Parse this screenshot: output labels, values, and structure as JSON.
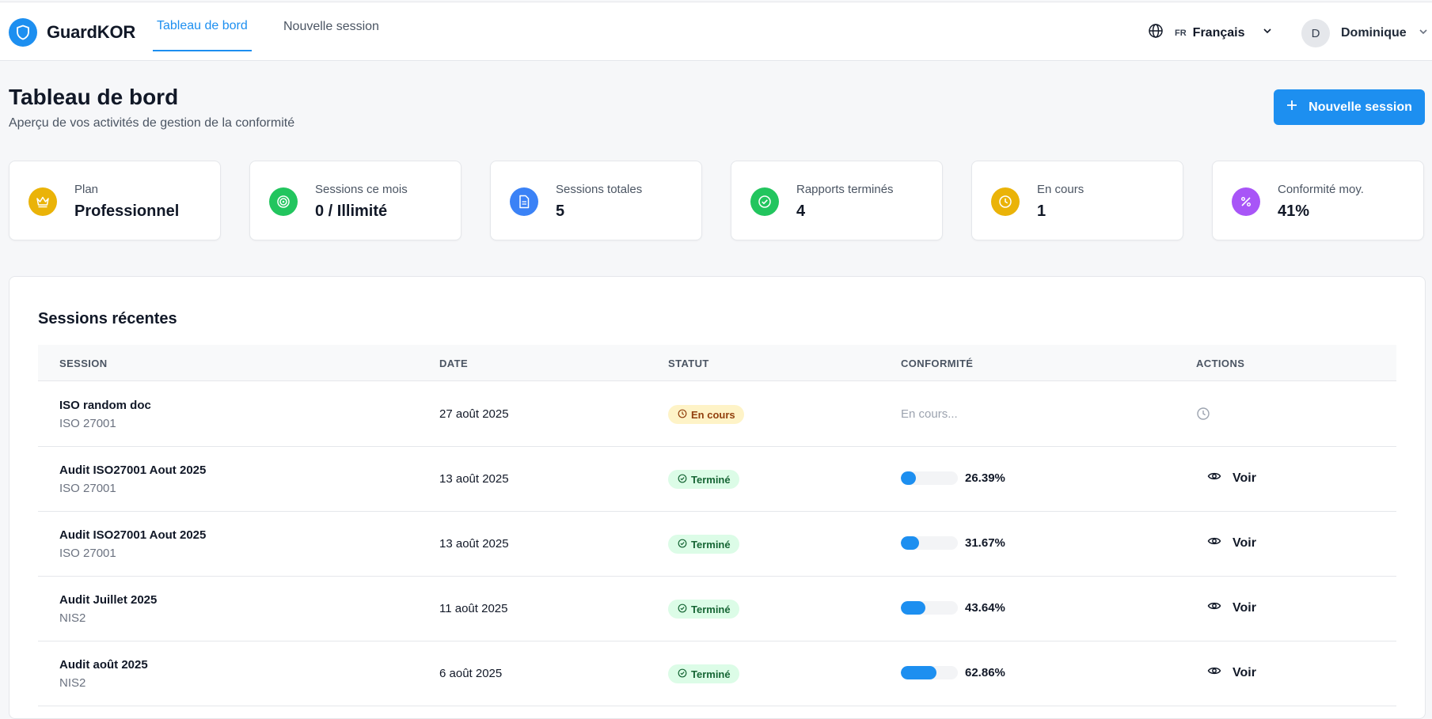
{
  "app": {
    "name": "GuardKOR"
  },
  "nav": {
    "tabs": [
      {
        "label": "Tableau de bord",
        "active": true
      },
      {
        "label": "Nouvelle session",
        "active": false
      }
    ]
  },
  "language": {
    "code": "FR",
    "name": "Français"
  },
  "user": {
    "initial": "D",
    "name": "Dominique"
  },
  "page": {
    "title": "Tableau de bord",
    "subtitle": "Aperçu de vos activités de gestion de la conformité",
    "new_session_label": "Nouvelle session"
  },
  "stats": [
    {
      "label": "Plan",
      "value": "Professionnel",
      "icon": "crown-icon",
      "color": "#eab308"
    },
    {
      "label": "Sessions ce mois",
      "value": "0 / Illimité",
      "icon": "target-icon",
      "color": "#22c55e"
    },
    {
      "label": "Sessions totales",
      "value": "5",
      "icon": "document-icon",
      "color": "#3b82f6"
    },
    {
      "label": "Rapports terminés",
      "value": "4",
      "icon": "check-circle-icon",
      "color": "#22c55e"
    },
    {
      "label": "En cours",
      "value": "1",
      "icon": "clock-icon",
      "color": "#eab308"
    },
    {
      "label": "Conformité moy.",
      "value": "41%",
      "icon": "percent-icon",
      "color": "#a855f7"
    }
  ],
  "recent": {
    "title": "Sessions récentes",
    "columns": [
      "SESSION",
      "DATE",
      "STATUT",
      "CONFORMITÉ",
      "ACTIONS"
    ],
    "rows": [
      {
        "name": "ISO random doc",
        "standard": "ISO 27001",
        "date": "27 août 2025",
        "status": "En cours",
        "state": "running",
        "compliance_text": "En cours...",
        "compliance": null
      },
      {
        "name": "Audit ISO27001 Aout 2025",
        "standard": "ISO 27001",
        "date": "13 août 2025",
        "status": "Terminé",
        "state": "done",
        "compliance": 26.39,
        "compliance_text": "26.39%",
        "action": "Voir"
      },
      {
        "name": "Audit ISO27001 Aout 2025",
        "standard": "ISO 27001",
        "date": "13 août 2025",
        "status": "Terminé",
        "state": "done",
        "compliance": 31.67,
        "compliance_text": "31.67%",
        "action": "Voir"
      },
      {
        "name": "Audit Juillet 2025",
        "standard": "NIS2",
        "date": "11 août 2025",
        "status": "Terminé",
        "state": "done",
        "compliance": 43.64,
        "compliance_text": "43.64%",
        "action": "Voir"
      },
      {
        "name": "Audit août 2025",
        "standard": "NIS2",
        "date": "6 août 2025",
        "status": "Terminé",
        "state": "done",
        "compliance": 62.86,
        "compliance_text": "62.86%",
        "action": "Voir"
      }
    ]
  },
  "colors": {
    "accent": "#1d8ff0"
  }
}
